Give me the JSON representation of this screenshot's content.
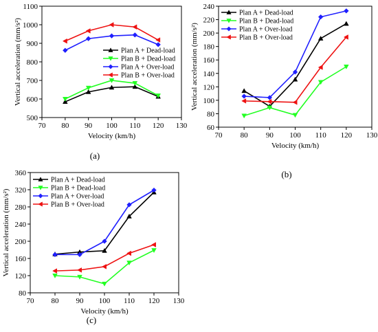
{
  "colors": {
    "plan_a_dead": "#000000",
    "plan_b_dead": "#22ff22",
    "plan_a_over": "#1f1fff",
    "plan_b_over": "#ee1111"
  },
  "chart_data": [
    {
      "type": "line",
      "panel_label": "(a)",
      "xlabel": "Velocity (km/h)",
      "ylabel": "Vertical acceleration (mm/s²)",
      "xlim": [
        70,
        130
      ],
      "ylim": [
        500,
        1100
      ],
      "xticks": [
        70,
        80,
        90,
        100,
        110,
        120,
        130
      ],
      "yticks": [
        500,
        600,
        700,
        800,
        900,
        1000,
        1100
      ],
      "legend_position": "center-right",
      "x": [
        80,
        90,
        100,
        110,
        120
      ],
      "series": [
        {
          "name": "Plan A + Dead-load",
          "marker": "triangle-up",
          "color": "#000000",
          "values": [
            585,
            638,
            662,
            666,
            613
          ]
        },
        {
          "name": "Plan B + Dead-load",
          "marker": "triangle-down",
          "color": "#22ff22",
          "values": [
            600,
            660,
            700,
            685,
            618
          ]
        },
        {
          "name": "Plan A + Over-load",
          "marker": "diamond",
          "color": "#1f1fff",
          "values": [
            862,
            925,
            940,
            945,
            893
          ]
        },
        {
          "name": "Plan B + Over-load",
          "marker": "triangle-left",
          "color": "#ee1111",
          "values": [
            912,
            967,
            1000,
            988,
            918
          ]
        }
      ]
    },
    {
      "type": "line",
      "panel_label": "(b)",
      "xlabel": "Velocity (km/h)",
      "ylabel": "Vertical acceleration (mm/s²)",
      "xlim": [
        70,
        130
      ],
      "ylim": [
        60,
        240
      ],
      "xticks": [
        70,
        80,
        90,
        100,
        110,
        120,
        130
      ],
      "yticks": [
        60,
        80,
        100,
        120,
        140,
        160,
        180,
        200,
        220,
        240
      ],
      "legend_position": "top-left",
      "x": [
        80,
        90,
        100,
        110,
        120
      ],
      "series": [
        {
          "name": "Plan A + Dead-load",
          "marker": "triangle-up",
          "color": "#000000",
          "values": [
            114,
            91,
            131,
            192,
            214
          ]
        },
        {
          "name": "Plan B + Dead-load",
          "marker": "triangle-down",
          "color": "#22ff22",
          "values": [
            77,
            89,
            78,
            127,
            150
          ]
        },
        {
          "name": "Plan A + Over-load",
          "marker": "diamond",
          "color": "#1f1fff",
          "values": [
            106,
            104,
            142,
            224,
            233
          ]
        },
        {
          "name": "Plan B + Over-load",
          "marker": "triangle-left",
          "color": "#ee1111",
          "values": [
            99,
            98,
            97,
            149,
            194
          ]
        }
      ]
    },
    {
      "type": "line",
      "panel_label": "(c)",
      "xlabel": "Velocity (km/h)",
      "ylabel": "Vertical acceleration (mm/s²)",
      "xlim": [
        70,
        130
      ],
      "ylim": [
        80,
        360
      ],
      "xticks": [
        70,
        80,
        90,
        100,
        110,
        120,
        130
      ],
      "yticks": [
        80,
        120,
        160,
        200,
        240,
        280,
        320,
        360
      ],
      "legend_position": "top-left",
      "x": [
        80,
        90,
        100,
        110,
        120
      ],
      "series": [
        {
          "name": "Plan A + Dead-load",
          "marker": "triangle-up",
          "color": "#000000",
          "values": [
            170,
            175,
            178,
            258,
            314
          ]
        },
        {
          "name": "Plan B + Dead-load",
          "marker": "triangle-down",
          "color": "#22ff22",
          "values": [
            120,
            117,
            101,
            150,
            179
          ]
        },
        {
          "name": "Plan A + Over-load",
          "marker": "diamond",
          "color": "#1f1fff",
          "values": [
            169,
            169,
            200,
            285,
            319
          ]
        },
        {
          "name": "Plan B + Over-load",
          "marker": "triangle-left",
          "color": "#ee1111",
          "values": [
            131,
            133,
            141,
            172,
            192
          ]
        }
      ]
    }
  ]
}
